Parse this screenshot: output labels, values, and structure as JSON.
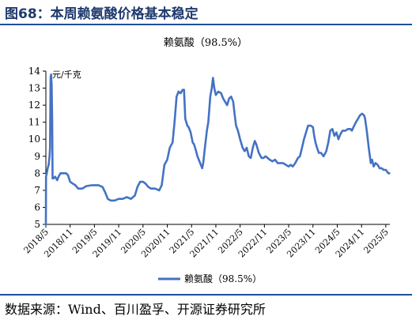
{
  "figure": {
    "title": "图68：本周赖氨酸价格基本稳定",
    "source": "数据来源：Wind、百川盈孚、开源证券研究所"
  },
  "chart_data": {
    "type": "line",
    "title": "赖氨酸（98.5%）",
    "xlabel": "",
    "ylabel": "元/千克",
    "ylim": [
      5,
      14
    ],
    "yticks": [
      5,
      6,
      7,
      8,
      9,
      10,
      11,
      12,
      13,
      14
    ],
    "xlim": [
      "2018-05",
      "2025-06"
    ],
    "xticks": [
      "2018/5",
      "2018/11",
      "2019/5",
      "2019/11",
      "2020/5",
      "2020/11",
      "2021/5",
      "2021/11",
      "2022/5",
      "2022/11",
      "2023/5",
      "2023/11",
      "2024/5",
      "2024/11",
      "2025/5"
    ],
    "grid": false,
    "legend": {
      "placement": "bottom-center"
    },
    "series": [
      {
        "name": "赖氨酸（98.5%）",
        "color": "#4472c4",
        "points": [
          [
            "2018-05-01",
            5.0
          ],
          [
            "2018-05-02",
            7.8
          ],
          [
            "2018-05-08",
            8.0
          ],
          [
            "2018-05-15",
            8.3
          ],
          [
            "2018-05-22",
            8.5
          ],
          [
            "2018-05-29",
            9.0
          ],
          [
            "2018-06-02",
            9.5
          ],
          [
            "2018-06-06",
            13.6
          ],
          [
            "2018-06-10",
            13.8
          ],
          [
            "2018-06-14",
            13.2
          ],
          [
            "2018-06-18",
            11.0
          ],
          [
            "2018-06-21",
            7.7
          ],
          [
            "2018-06-28",
            7.7
          ],
          [
            "2018-07-10",
            7.8
          ],
          [
            "2018-07-25",
            7.6
          ],
          [
            "2018-08-05",
            7.8
          ],
          [
            "2018-08-20",
            8.0
          ],
          [
            "2018-09-10",
            8.0
          ],
          [
            "2018-10-01",
            8.0
          ],
          [
            "2018-10-15",
            7.9
          ],
          [
            "2018-11-01",
            7.5
          ],
          [
            "2018-11-20",
            7.4
          ],
          [
            "2018-12-10",
            7.3
          ],
          [
            "2019-01-01",
            7.1
          ],
          [
            "2019-02-01",
            7.1
          ],
          [
            "2019-03-01",
            7.25
          ],
          [
            "2019-04-15",
            7.3
          ],
          [
            "2019-06-01",
            7.3
          ],
          [
            "2019-07-01",
            7.2
          ],
          [
            "2019-07-20",
            6.9
          ],
          [
            "2019-08-10",
            6.5
          ],
          [
            "2019-09-01",
            6.4
          ],
          [
            "2019-10-01",
            6.4
          ],
          [
            "2019-11-01",
            6.5
          ],
          [
            "2019-12-01",
            6.5
          ],
          [
            "2020-01-01",
            6.6
          ],
          [
            "2020-02-01",
            6.5
          ],
          [
            "2020-03-01",
            6.7
          ],
          [
            "2020-03-20",
            7.2
          ],
          [
            "2020-04-10",
            7.5
          ],
          [
            "2020-05-01",
            7.5
          ],
          [
            "2020-05-20",
            7.4
          ],
          [
            "2020-06-10",
            7.2
          ],
          [
            "2020-07-01",
            7.1
          ],
          [
            "2020-08-01",
            7.1
          ],
          [
            "2020-09-01",
            7.0
          ],
          [
            "2020-09-20",
            7.3
          ],
          [
            "2020-10-10",
            8.5
          ],
          [
            "2020-11-01",
            8.8
          ],
          [
            "2020-11-20",
            9.5
          ],
          [
            "2020-12-10",
            9.8
          ],
          [
            "2020-12-25",
            11.0
          ],
          [
            "2021-01-10",
            12.5
          ],
          [
            "2021-01-25",
            12.8
          ],
          [
            "2021-02-10",
            12.7
          ],
          [
            "2021-02-25",
            12.9
          ],
          [
            "2021-03-05",
            12.9
          ],
          [
            "2021-03-15",
            11.2
          ],
          [
            "2021-03-30",
            10.8
          ],
          [
            "2021-04-10",
            10.7
          ],
          [
            "2021-04-25",
            10.4
          ],
          [
            "2021-05-10",
            9.8
          ],
          [
            "2021-05-20",
            9.7
          ],
          [
            "2021-06-01",
            9.4
          ],
          [
            "2021-06-15",
            9.0
          ],
          [
            "2021-06-25",
            8.8
          ],
          [
            "2021-07-10",
            8.5
          ],
          [
            "2021-07-20",
            8.3
          ],
          [
            "2021-07-28",
            8.6
          ],
          [
            "2021-08-10",
            9.5
          ],
          [
            "2021-08-25",
            10.5
          ],
          [
            "2021-09-05",
            11.0
          ],
          [
            "2021-09-20",
            12.5
          ],
          [
            "2021-10-01",
            13.0
          ],
          [
            "2021-10-10",
            13.6
          ],
          [
            "2021-10-20",
            13.0
          ],
          [
            "2021-11-01",
            12.6
          ],
          [
            "2021-11-20",
            12.8
          ],
          [
            "2021-12-10",
            12.7
          ],
          [
            "2021-12-25",
            12.4
          ],
          [
            "2022-01-10",
            12.2
          ],
          [
            "2022-01-25",
            12.0
          ],
          [
            "2022-02-10",
            12.4
          ],
          [
            "2022-02-25",
            12.5
          ],
          [
            "2022-03-10",
            12.2
          ],
          [
            "2022-03-20",
            11.5
          ],
          [
            "2022-04-01",
            10.8
          ],
          [
            "2022-04-15",
            10.5
          ],
          [
            "2022-05-01",
            10.0
          ],
          [
            "2022-05-20",
            9.5
          ],
          [
            "2022-06-05",
            9.3
          ],
          [
            "2022-06-20",
            9.5
          ],
          [
            "2022-07-05",
            9.0
          ],
          [
            "2022-07-20",
            8.9
          ],
          [
            "2022-08-05",
            9.5
          ],
          [
            "2022-08-20",
            9.9
          ],
          [
            "2022-09-01",
            9.7
          ],
          [
            "2022-09-20",
            9.2
          ],
          [
            "2022-10-10",
            8.9
          ],
          [
            "2022-10-25",
            8.9
          ],
          [
            "2022-11-10",
            9.0
          ],
          [
            "2022-11-25",
            8.9
          ],
          [
            "2022-12-10",
            8.8
          ],
          [
            "2023-01-01",
            8.7
          ],
          [
            "2023-01-20",
            8.8
          ],
          [
            "2023-02-10",
            8.6
          ],
          [
            "2023-03-01",
            8.6
          ],
          [
            "2023-03-20",
            8.6
          ],
          [
            "2023-04-10",
            8.5
          ],
          [
            "2023-05-01",
            8.4
          ],
          [
            "2023-05-15",
            8.5
          ],
          [
            "2023-06-01",
            8.4
          ],
          [
            "2023-06-20",
            8.6
          ],
          [
            "2023-07-10",
            8.9
          ],
          [
            "2023-07-25",
            9.0
          ],
          [
            "2023-08-10",
            9.5
          ],
          [
            "2023-08-25",
            10.0
          ],
          [
            "2023-09-10",
            10.4
          ],
          [
            "2023-09-25",
            10.8
          ],
          [
            "2023-10-15",
            10.8
          ],
          [
            "2023-11-01",
            10.7
          ],
          [
            "2023-11-10",
            10.2
          ],
          [
            "2023-11-20",
            9.8
          ],
          [
            "2023-12-01",
            9.5
          ],
          [
            "2023-12-15",
            9.2
          ],
          [
            "2024-01-01",
            9.2
          ],
          [
            "2024-01-20",
            9.0
          ],
          [
            "2024-02-10",
            9.3
          ],
          [
            "2024-02-25",
            9.8
          ],
          [
            "2024-03-10",
            10.5
          ],
          [
            "2024-03-25",
            10.6
          ],
          [
            "2024-04-10",
            10.2
          ],
          [
            "2024-04-25",
            10.4
          ],
          [
            "2024-05-10",
            10.0
          ],
          [
            "2024-05-25",
            10.3
          ],
          [
            "2024-06-10",
            10.5
          ],
          [
            "2024-07-01",
            10.5
          ],
          [
            "2024-07-20",
            10.6
          ],
          [
            "2024-08-10",
            10.6
          ],
          [
            "2024-08-20",
            10.5
          ],
          [
            "2024-09-01",
            10.7
          ],
          [
            "2024-09-20",
            11.0
          ],
          [
            "2024-10-05",
            11.2
          ],
          [
            "2024-10-20",
            11.4
          ],
          [
            "2024-11-05",
            11.5
          ],
          [
            "2024-11-20",
            11.4
          ],
          [
            "2024-11-28",
            11.2
          ],
          [
            "2024-12-10",
            10.5
          ],
          [
            "2024-12-25",
            9.5
          ],
          [
            "2025-01-10",
            8.6
          ],
          [
            "2025-01-20",
            8.8
          ],
          [
            "2025-02-01",
            8.4
          ],
          [
            "2025-02-15",
            8.6
          ],
          [
            "2025-03-01",
            8.5
          ],
          [
            "2025-03-15",
            8.3
          ],
          [
            "2025-04-01",
            8.3
          ],
          [
            "2025-04-15",
            8.2
          ],
          [
            "2025-05-01",
            8.2
          ],
          [
            "2025-05-20",
            8.0
          ],
          [
            "2025-05-28",
            8.0
          ]
        ]
      }
    ]
  }
}
